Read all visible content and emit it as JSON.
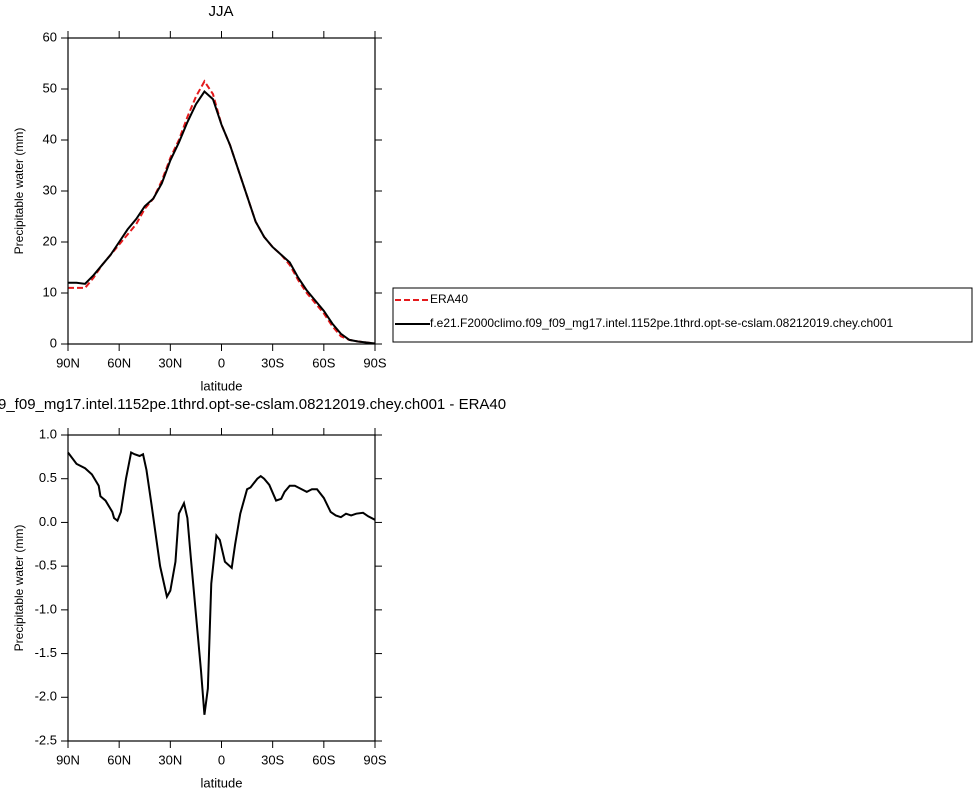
{
  "chart_data": [
    {
      "type": "line",
      "title": "JJA",
      "x_label": "latitude",
      "y_label": "Precipitable water (mm)",
      "x": [
        90,
        85,
        80,
        75,
        70,
        65,
        60,
        55,
        50,
        45,
        40,
        35,
        30,
        25,
        20,
        15,
        10,
        5,
        0,
        -5,
        -10,
        -15,
        -20,
        -25,
        -30,
        -35,
        -40,
        -45,
        -50,
        -55,
        -60,
        -65,
        -70,
        -75,
        -80,
        -85,
        -90
      ],
      "series": [
        {
          "name": "ERA40",
          "color": "#e41a1c",
          "dashed": true,
          "values": [
            11,
            11,
            11,
            13,
            15.5,
            17.5,
            19.5,
            21.5,
            23.5,
            26.5,
            28.5,
            32,
            36.5,
            40,
            44.5,
            48.5,
            51.5,
            49,
            43,
            39,
            34,
            29,
            24,
            21,
            19,
            17.5,
            15.5,
            12.5,
            10,
            8,
            6,
            3.5,
            1.5,
            0.8,
            0.5,
            0.3,
            0.1
          ]
        },
        {
          "name": "f.e21.F2000climo.f09_f09_mg17.intel.1152pe.1thrd.opt-se-cslam.08212019.chey.ch001",
          "color": "#000000",
          "dashed": false,
          "values": [
            12,
            12,
            11.8,
            13.5,
            15.5,
            17.5,
            20,
            22.5,
            24.5,
            27,
            28.5,
            31.5,
            36,
            39.5,
            43.5,
            47,
            49.5,
            48,
            43,
            39,
            34,
            29,
            24,
            21,
            19,
            17.5,
            16,
            13,
            10.5,
            8.5,
            6.5,
            4,
            2,
            0.8,
            0.5,
            0.3,
            0.1
          ]
        }
      ],
      "xlim": [
        90,
        -90
      ],
      "xticks": [
        {
          "value": 90,
          "label": "90N"
        },
        {
          "value": 60,
          "label": "60N"
        },
        {
          "value": 30,
          "label": "30N"
        },
        0,
        {
          "value": -30,
          "label": "30S"
        },
        {
          "value": -60,
          "label": "60S"
        },
        {
          "value": -90,
          "label": "90S"
        }
      ],
      "ylim": [
        0,
        60
      ],
      "yticks": [
        0,
        10,
        20,
        30,
        40,
        50,
        60
      ],
      "legend": "right"
    },
    {
      "type": "line",
      "title": "9_f09_mg17.intel.1152pe.1thrd.opt-se-cslam.08212019.chey.ch001 - ERA40",
      "x_label": "latitude",
      "y_label": "Precipitable water (mm)",
      "x": [
        90,
        85,
        80,
        76,
        72,
        71,
        68,
        64,
        63,
        61,
        59,
        56,
        53,
        51,
        48,
        46,
        44,
        41,
        36,
        32,
        30,
        27,
        25,
        22,
        20,
        18,
        15,
        12,
        10,
        8,
        6,
        3,
        1,
        -2,
        -6,
        -8,
        -11,
        -15,
        -17,
        -21,
        -23,
        -25,
        -28,
        -32,
        -35,
        -37,
        -40,
        -43,
        -47,
        -50,
        -53,
        -56,
        -60,
        -64,
        -67,
        -70,
        -73,
        -76,
        -79,
        -83,
        -86,
        -90
      ],
      "values": [
        0.8,
        0.67,
        0.62,
        0.55,
        0.42,
        0.3,
        0.25,
        0.12,
        0.05,
        0.02,
        0.12,
        0.5,
        0.8,
        0.78,
        0.76,
        0.78,
        0.6,
        0.2,
        -0.5,
        -0.85,
        -0.78,
        -0.45,
        0.1,
        0.22,
        0.05,
        -0.4,
        -1.05,
        -1.7,
        -2.2,
        -1.9,
        -0.7,
        -0.15,
        -0.2,
        -0.45,
        -0.52,
        -0.25,
        0.1,
        0.38,
        0.4,
        0.5,
        0.53,
        0.5,
        0.43,
        0.25,
        0.27,
        0.35,
        0.42,
        0.42,
        0.38,
        0.35,
        0.38,
        0.38,
        0.28,
        0.12,
        0.08,
        0.06,
        0.1,
        0.08,
        0.1,
        0.11,
        0.07,
        0.03
      ],
      "color": "#000000",
      "xlim": [
        90,
        -90
      ],
      "xticks": [
        {
          "value": 90,
          "label": "90N"
        },
        {
          "value": 60,
          "label": "60N"
        },
        {
          "value": 30,
          "label": "30N"
        },
        0,
        {
          "value": -30,
          "label": "30S"
        },
        {
          "value": -60,
          "label": "60S"
        },
        {
          "value": -90,
          "label": "90S"
        }
      ],
      "ylim": [
        -2.5,
        1
      ],
      "yticks": [
        {
          "value": -2.5,
          "label": "-2.5"
        },
        {
          "value": -2,
          "label": "-2.0"
        },
        {
          "value": -1.5,
          "label": "-1.5"
        },
        {
          "value": -1,
          "label": "-1.0"
        },
        {
          "value": -0.5,
          "label": "-0.5"
        },
        {
          "value": 0,
          "label": "0.0"
        },
        0.5,
        {
          "value": 1,
          "label": "1.0"
        }
      ]
    }
  ]
}
